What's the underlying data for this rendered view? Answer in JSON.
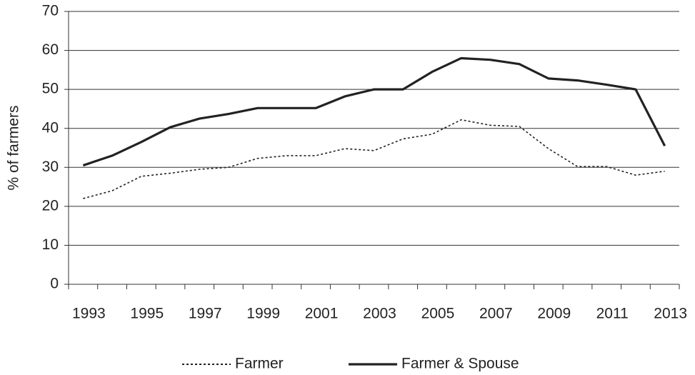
{
  "chart_data": {
    "type": "line",
    "y_label": "% of farmers",
    "categories": [
      "1993",
      null,
      "1995",
      null,
      "1997",
      null,
      "1999",
      null,
      "2001",
      null,
      "2003",
      null,
      "2005",
      null,
      "2007",
      null,
      "2009",
      null,
      "2011",
      null,
      "2013"
    ],
    "series": [
      {
        "name": "Farmer",
        "color": "#222222",
        "dash": "dotted",
        "values": [
          22,
          24,
          27.7,
          28.5,
          29.5,
          30,
          32.3,
          33,
          33,
          34.8,
          34.3,
          37.3,
          38.5,
          42.2,
          40.8,
          40.5,
          34.8,
          30.2,
          30.2,
          28,
          29
        ]
      },
      {
        "name": "Farmer & Spouse",
        "color": "#222222",
        "dash": "solid",
        "values": [
          30.5,
          33,
          36.5,
          40.3,
          42.5,
          43.7,
          45.2,
          45.2,
          45.2,
          48.2,
          50,
          50,
          54.5,
          58,
          57.6,
          56.5,
          52.8,
          52.3,
          51.2,
          50,
          35.5
        ]
      }
    ],
    "ylim": [
      0,
      70
    ],
    "yticks": [
      0,
      10,
      20,
      30,
      40,
      50,
      60,
      70
    ],
    "grid": true,
    "legend": "bottom"
  }
}
